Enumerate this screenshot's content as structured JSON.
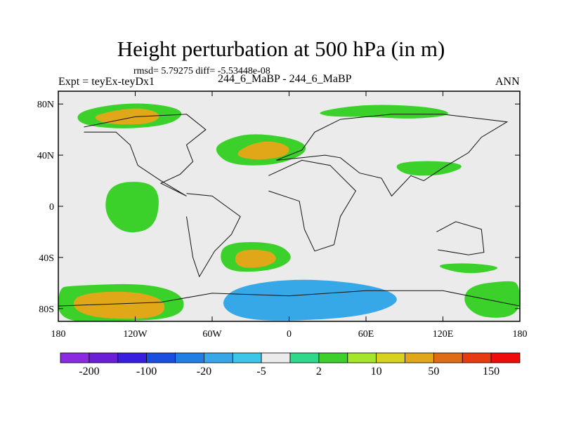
{
  "header": {
    "title": "Height perturbation at 500 hPa (in m)",
    "stats": "rmsd= 5.79275 diff= -5.53448e-08",
    "left_label": "Expt = teyEx-teyDx1",
    "center_label": "244_6_MaBP - 244_6_MaBP",
    "right_label": "ANN"
  },
  "chart_data": {
    "type": "heatmap",
    "title": "Height perturbation at 500 hPa (in m)",
    "subtitle": "244_6_MaBP - 244_6_MaBP",
    "projection": "cylindrical equidistant",
    "xlim": [
      -180,
      180
    ],
    "ylim": [
      -90,
      90
    ],
    "x_ticks": [
      {
        "value": -180,
        "label": "180"
      },
      {
        "value": -120,
        "label": "120W"
      },
      {
        "value": -60,
        "label": "60W"
      },
      {
        "value": 0,
        "label": "0"
      },
      {
        "value": 60,
        "label": "60E"
      },
      {
        "value": 120,
        "label": "120E"
      },
      {
        "value": 180,
        "label": "180"
      }
    ],
    "y_ticks": [
      {
        "value": 80,
        "label": "80N"
      },
      {
        "value": 40,
        "label": "40N"
      },
      {
        "value": 0,
        "label": "0"
      },
      {
        "value": -40,
        "label": "40S"
      },
      {
        "value": -80,
        "label": "80S"
      }
    ],
    "colorbar": {
      "placement": "bottom",
      "colors": [
        "#8a2be2",
        "#6a1fd6",
        "#3a1ee0",
        "#1a4ee0",
        "#1f7fe6",
        "#36a8e8",
        "#3cc6e8",
        "#ebebeb",
        "#2ed98a",
        "#3bd12a",
        "#a6e62a",
        "#d8d11e",
        "#e0a818",
        "#e06c14",
        "#e83a10",
        "#f00a0a"
      ],
      "tick_labels": [
        "-200",
        "-100",
        "-20",
        "-5",
        "2",
        "10",
        "50",
        "150"
      ]
    },
    "fields": [
      {
        "value": -4,
        "points": [
          [
            -180,
            75
          ],
          [
            -120,
            88
          ],
          [
            -40,
            86
          ],
          [
            10,
            86
          ],
          [
            60,
            80
          ],
          [
            120,
            76
          ],
          [
            180,
            78
          ],
          [
            180,
            66
          ],
          [
            130,
            62
          ],
          [
            80,
            58
          ],
          [
            40,
            58
          ],
          [
            0,
            62
          ],
          [
            -30,
            60
          ],
          [
            -90,
            58
          ],
          [
            -150,
            55
          ],
          [
            -180,
            58
          ]
        ]
      },
      {
        "value": 4,
        "points": [
          [
            -165,
            75
          ],
          [
            -120,
            82
          ],
          [
            -80,
            76
          ],
          [
            -90,
            64
          ],
          [
            -130,
            60
          ],
          [
            -165,
            64
          ]
        ]
      },
      {
        "value": 20,
        "points": [
          [
            -150,
            72
          ],
          [
            -118,
            78
          ],
          [
            -98,
            72
          ],
          [
            -108,
            64
          ],
          [
            -140,
            64
          ],
          [
            -152,
            68
          ]
        ]
      },
      {
        "value": 4,
        "points": [
          [
            20,
            74
          ],
          [
            60,
            80
          ],
          [
            110,
            78
          ],
          [
            130,
            72
          ],
          [
            100,
            68
          ],
          [
            60,
            70
          ],
          [
            30,
            70
          ]
        ]
      },
      {
        "value": -4,
        "points": [
          [
            -180,
            50
          ],
          [
            -130,
            52
          ],
          [
            -110,
            45
          ],
          [
            -120,
            32
          ],
          [
            -150,
            28
          ],
          [
            -180,
            32
          ]
        ]
      },
      {
        "value": 4,
        "points": [
          [
            -55,
            50
          ],
          [
            -30,
            58
          ],
          [
            10,
            52
          ],
          [
            15,
            42
          ],
          [
            -10,
            32
          ],
          [
            -45,
            32
          ],
          [
            -58,
            42
          ]
        ]
      },
      {
        "value": 20,
        "points": [
          [
            -40,
            44
          ],
          [
            -20,
            52
          ],
          [
            0,
            48
          ],
          [
            0,
            40
          ],
          [
            -20,
            36
          ],
          [
            -40,
            38
          ]
        ]
      },
      {
        "value": -4,
        "points": [
          [
            -100,
            30
          ],
          [
            -80,
            36
          ],
          [
            -55,
            28
          ],
          [
            -60,
            12
          ],
          [
            -85,
            10
          ],
          [
            -100,
            18
          ]
        ]
      },
      {
        "value": 4,
        "points": [
          [
            80,
            34
          ],
          [
            115,
            36
          ],
          [
            140,
            32
          ],
          [
            120,
            24
          ],
          [
            90,
            24
          ]
        ]
      },
      {
        "value": 4,
        "points": [
          [
            -140,
            18
          ],
          [
            -110,
            20
          ],
          [
            -100,
            8
          ],
          [
            -105,
            -18
          ],
          [
            -130,
            -22
          ],
          [
            -145,
            -5
          ]
        ]
      },
      {
        "value": -4,
        "points": [
          [
            -50,
            -10
          ],
          [
            -20,
            -2
          ],
          [
            10,
            0
          ],
          [
            30,
            12
          ],
          [
            60,
            14
          ],
          [
            75,
            6
          ],
          [
            60,
            -12
          ],
          [
            30,
            -16
          ],
          [
            0,
            -22
          ],
          [
            -40,
            -20
          ],
          [
            -60,
            -18
          ]
        ]
      },
      {
        "value": -4,
        "points": [
          [
            -180,
            -30
          ],
          [
            -120,
            -32
          ],
          [
            -80,
            -36
          ],
          [
            -30,
            -26
          ],
          [
            20,
            -30
          ],
          [
            60,
            -40
          ],
          [
            110,
            -40
          ],
          [
            150,
            -30
          ],
          [
            180,
            -32
          ],
          [
            180,
            -90
          ],
          [
            -180,
            -90
          ]
        ]
      },
      {
        "value": 4,
        "points": [
          [
            -170,
            -62
          ],
          [
            -110,
            -60
          ],
          [
            -80,
            -70
          ],
          [
            -85,
            -88
          ],
          [
            -140,
            -90
          ],
          [
            -180,
            -90
          ],
          [
            -180,
            -64
          ]
        ]
      },
      {
        "value": 20,
        "points": [
          [
            -165,
            -68
          ],
          [
            -120,
            -66
          ],
          [
            -95,
            -74
          ],
          [
            -100,
            -88
          ],
          [
            -150,
            -88
          ],
          [
            -170,
            -80
          ]
        ]
      },
      {
        "value": 4,
        "points": [
          [
            -50,
            -28
          ],
          [
            -10,
            -28
          ],
          [
            5,
            -40
          ],
          [
            -10,
            -50
          ],
          [
            -45,
            -52
          ],
          [
            -55,
            -42
          ]
        ]
      },
      {
        "value": 20,
        "points": [
          [
            -42,
            -34
          ],
          [
            -15,
            -34
          ],
          [
            -8,
            -42
          ],
          [
            -20,
            -48
          ],
          [
            -42,
            -48
          ]
        ]
      },
      {
        "value": -20,
        "points": [
          [
            -40,
            -62
          ],
          [
            10,
            -56
          ],
          [
            70,
            -62
          ],
          [
            90,
            -74
          ],
          [
            60,
            -86
          ],
          [
            0,
            -90
          ],
          [
            -40,
            -88
          ],
          [
            -55,
            -76
          ]
        ]
      },
      {
        "value": 4,
        "points": [
          [
            140,
            -62
          ],
          [
            170,
            -58
          ],
          [
            180,
            -60
          ],
          [
            180,
            -86
          ],
          [
            150,
            -88
          ],
          [
            135,
            -76
          ]
        ]
      },
      {
        "value": 4,
        "points": [
          [
            110,
            -46
          ],
          [
            140,
            -44
          ],
          [
            170,
            -48
          ],
          [
            140,
            -54
          ]
        ]
      }
    ],
    "continent_outlines": [
      [
        [
          -160,
          62
        ],
        [
          -120,
          70
        ],
        [
          -80,
          72
        ],
        [
          -65,
          60
        ],
        [
          -80,
          48
        ],
        [
          -75,
          35
        ],
        [
          -85,
          25
        ],
        [
          -100,
          18
        ],
        [
          -80,
          8
        ],
        [
          -100,
          20
        ],
        [
          -118,
          32
        ],
        [
          -124,
          48
        ],
        [
          -135,
          58
        ],
        [
          -160,
          58
        ]
      ],
      [
        [
          -80,
          10
        ],
        [
          -60,
          8
        ],
        [
          -38,
          -8
        ],
        [
          -45,
          -22
        ],
        [
          -58,
          -35
        ],
        [
          -70,
          -55
        ],
        [
          -75,
          -40
        ],
        [
          -80,
          -8
        ]
      ],
      [
        [
          -10,
          36
        ],
        [
          10,
          44
        ],
        [
          20,
          58
        ],
        [
          40,
          68
        ],
        [
          80,
          72
        ],
        [
          120,
          72
        ],
        [
          170,
          66
        ],
        [
          150,
          54
        ],
        [
          140,
          42
        ],
        [
          120,
          30
        ],
        [
          105,
          20
        ],
        [
          95,
          24
        ],
        [
          80,
          8
        ],
        [
          72,
          22
        ],
        [
          55,
          26
        ],
        [
          40,
          38
        ],
        [
          28,
          40
        ],
        [
          10,
          38
        ],
        [
          -10,
          36
        ]
      ],
      [
        [
          -16,
          24
        ],
        [
          10,
          36
        ],
        [
          32,
          32
        ],
        [
          52,
          12
        ],
        [
          40,
          -8
        ],
        [
          35,
          -30
        ],
        [
          20,
          -35
        ],
        [
          12,
          -18
        ],
        [
          8,
          4
        ],
        [
          -16,
          12
        ]
      ],
      [
        [
          115,
          -20
        ],
        [
          130,
          -12
        ],
        [
          150,
          -18
        ],
        [
          152,
          -36
        ],
        [
          140,
          -38
        ],
        [
          116,
          -34
        ]
      ],
      [
        [
          -180,
          -78
        ],
        [
          -100,
          -75
        ],
        [
          -60,
          -68
        ],
        [
          0,
          -70
        ],
        [
          60,
          -66
        ],
        [
          120,
          -66
        ],
        [
          180,
          -78
        ]
      ]
    ]
  }
}
